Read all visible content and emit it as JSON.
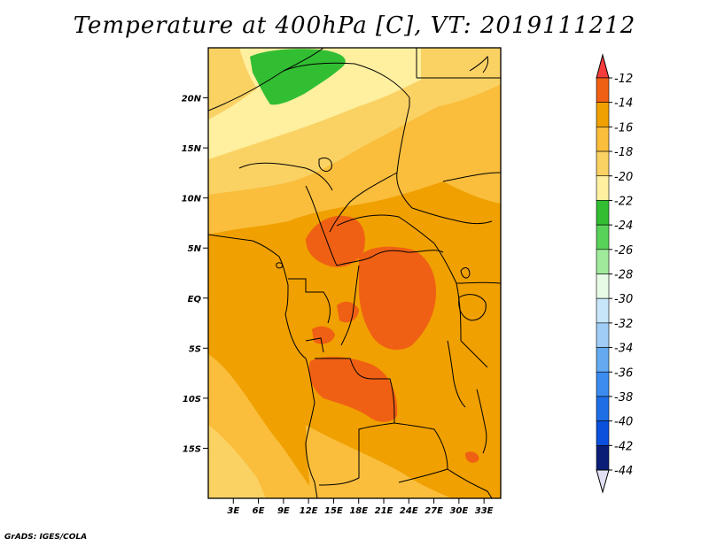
{
  "title": "Temperature at 400hPa [C], VT: 2019111212",
  "credit": "GrADS: IGES/COLA",
  "map": {
    "lon_range": [
      0,
      35
    ],
    "lat_range": [
      -20,
      25
    ],
    "lat_ticks": [
      {
        "lat": 20,
        "label": "20N"
      },
      {
        "lat": 15,
        "label": "15N"
      },
      {
        "lat": 10,
        "label": "10N"
      },
      {
        "lat": 5,
        "label": "5N"
      },
      {
        "lat": 0,
        "label": "EQ"
      },
      {
        "lat": -5,
        "label": "5S"
      },
      {
        "lat": -10,
        "label": "10S"
      },
      {
        "lat": -15,
        "label": "15S"
      }
    ],
    "lon_ticks": [
      {
        "lon": 3,
        "label": "3E"
      },
      {
        "lon": 6,
        "label": "6E"
      },
      {
        "lon": 9,
        "label": "9E"
      },
      {
        "lon": 12,
        "label": "12E"
      },
      {
        "lon": 15,
        "label": "15E"
      },
      {
        "lon": 18,
        "label": "18E"
      },
      {
        "lon": 21,
        "label": "21E"
      },
      {
        "lon": 24,
        "label": "24E"
      },
      {
        "lon": 27,
        "label": "27E"
      },
      {
        "lon": 30,
        "label": "30E"
      },
      {
        "lon": 33,
        "label": "33E"
      }
    ]
  },
  "colorbar": {
    "labels": [
      "-12",
      "-14",
      "-16",
      "-18",
      "-20",
      "-22",
      "-24",
      "-26",
      "-28",
      "-30",
      "-32",
      "-34",
      "-36",
      "-38",
      "-40",
      "-42",
      "-44"
    ],
    "colors": [
      "#fa3c3c",
      "#f06014",
      "#f0a000",
      "#fabe3c",
      "#fad264",
      "#fff0a0",
      "#32be32",
      "#5ad25a",
      "#a0eb9b",
      "#e6fae6",
      "#c8e6fa",
      "#a0cdf5",
      "#64aaf0",
      "#3c8cf0",
      "#1e6ee6",
      "#0a50dc",
      "#0a1e78",
      "#e1e1f5"
    ]
  },
  "field_colors": {
    "t_-24_to_-22": "#32be32",
    "t_-22_to_-20": "#fff0a0",
    "t_-20_to_-18": "#fad264",
    "t_-18_to_-16": "#fabe3c",
    "t_-16_to_-14": "#f0a000",
    "t_-14_to_-12": "#f06014"
  }
}
